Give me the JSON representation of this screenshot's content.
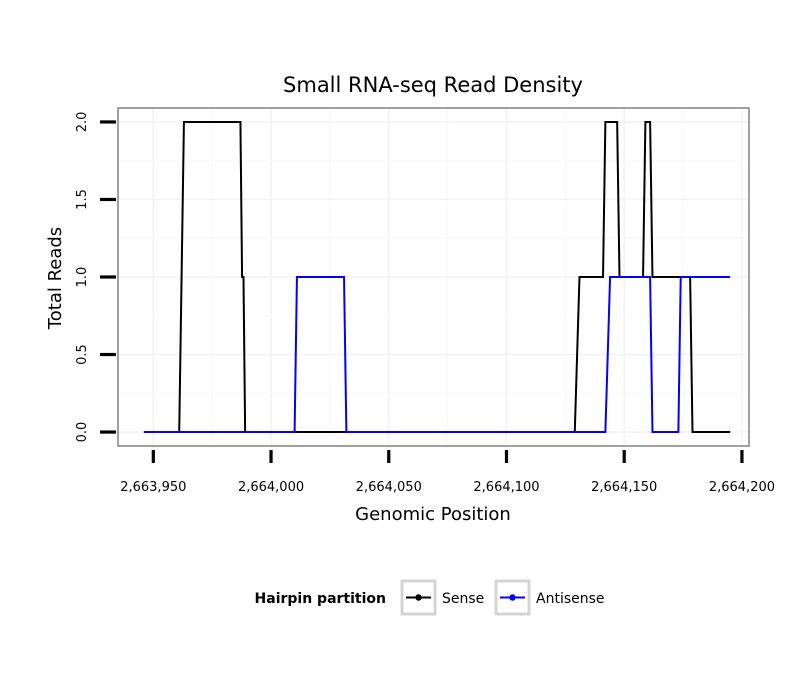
{
  "chart_data": {
    "type": "line",
    "title": "Small RNA-seq Read Density",
    "xlabel": "Genomic Position",
    "ylabel": "Total Reads",
    "xlim": [
      2663935,
      2664203
    ],
    "ylim": [
      -0.09,
      2.09
    ],
    "x_ticks": [
      2663950,
      2664000,
      2664050,
      2664100,
      2664150,
      2664200
    ],
    "x_tick_labels": [
      "2,663,950",
      "2,664,000",
      "2,664,050",
      "2,664,100",
      "2,664,150",
      "2,664,200"
    ],
    "y_ticks": [
      0,
      0.5,
      1,
      1.5,
      2
    ],
    "y_tick_labels": [
      "0.0",
      "0.5",
      "1.0",
      "1.5",
      "2.0"
    ],
    "grid": true,
    "legend": {
      "title": "Hairpin partition",
      "position": "bottom",
      "entries": [
        {
          "name": "Sense",
          "color": "#000000"
        },
        {
          "name": "Antisense",
          "color": "#0000ff"
        }
      ]
    },
    "series": [
      {
        "name": "Sense",
        "color": "#000000",
        "x": [
          2663946,
          2663961,
          2663963,
          2663987,
          2663987.7,
          2663988.3,
          2663989,
          2664129,
          2664131,
          2664141,
          2664142,
          2664147,
          2664148,
          2664158,
          2664159,
          2664161,
          2664162,
          2664178,
          2664179,
          2664195
        ],
        "y": [
          0,
          0,
          2,
          2,
          1,
          1,
          0,
          0,
          1,
          1,
          2,
          2,
          1,
          1,
          2,
          2,
          1,
          1,
          0,
          0
        ]
      },
      {
        "name": "Antisense",
        "color": "#0000ff",
        "x": [
          2663946,
          2664010,
          2664011,
          2664031,
          2664032,
          2664142,
          2664144,
          2664161,
          2664162,
          2664173,
          2664174,
          2664195
        ],
        "y": [
          0,
          0,
          1,
          1,
          0,
          0,
          1,
          1,
          0,
          0,
          1,
          1
        ]
      }
    ]
  }
}
